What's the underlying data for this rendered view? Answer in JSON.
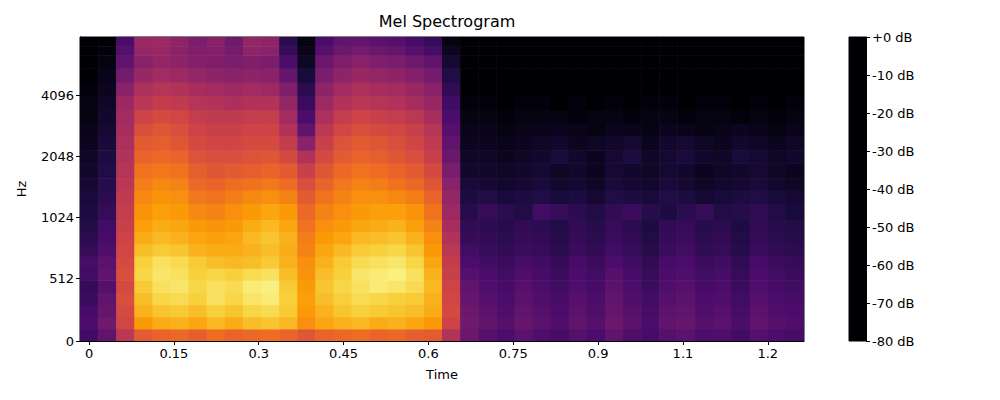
{
  "chart_data": {
    "type": "mel_spectrogram",
    "title": "Mel Spectrogram",
    "x_label": "Time",
    "y_label": "Hz",
    "x": [
      0,
      0.032,
      0.064,
      0.096,
      0.128,
      0.16,
      0.192,
      0.224,
      0.256,
      0.288,
      0.32,
      0.352,
      0.384,
      0.416,
      0.448,
      0.48,
      0.512,
      0.544,
      0.576,
      0.608,
      0.64,
      0.672,
      0.704,
      0.736,
      0.768,
      0.8,
      0.832,
      0.864,
      0.896,
      0.928,
      0.96,
      0.992,
      1.024,
      1.056,
      1.088,
      1.12,
      1.152,
      1.184,
      1.216,
      1.248
    ],
    "y_edges": [
      0,
      100,
      200,
      300,
      400,
      500,
      600,
      700,
      800,
      900,
      1000,
      1200,
      1400,
      1600,
      1900,
      2200,
      2600,
      3000,
      3500,
      4100,
      4800,
      5600,
      6500,
      7200,
      8000
    ],
    "cells": [
      [
        -64,
        -58,
        -40,
        -30,
        -28,
        -27,
        -29,
        -26,
        -28,
        -27,
        -26,
        -28,
        -31,
        -28,
        -27,
        -26,
        -28,
        -27,
        -29,
        -30,
        -42,
        -56,
        -60,
        -62,
        -59,
        -61,
        -63,
        -60,
        -62,
        -58,
        -61,
        -63,
        -60,
        -59,
        -62,
        -61,
        -64,
        -60,
        -62,
        -63
      ],
      [
        -62,
        -55,
        -35,
        -18,
        -15,
        -14,
        -16,
        -13,
        -15,
        -12,
        -11,
        -13,
        -20,
        -16,
        -14,
        -13,
        -15,
        -14,
        -16,
        -18,
        -36,
        -55,
        -58,
        -60,
        -57,
        -59,
        -61,
        -58,
        -60,
        -56,
        -59,
        -62,
        -58,
        -57,
        -60,
        -59,
        -62,
        -58,
        -60,
        -61
      ],
      [
        -63,
        -57,
        -34,
        -14,
        -11,
        -10,
        -12,
        -9,
        -11,
        -8,
        -7,
        -10,
        -18,
        -14,
        -11,
        -9,
        -10,
        -11,
        -12,
        -15,
        -34,
        -56,
        -59,
        -61,
        -58,
        -60,
        -62,
        -59,
        -61,
        -57,
        -60,
        -63,
        -59,
        -58,
        -61,
        -60,
        -63,
        -59,
        -61,
        -62
      ],
      [
        -65,
        -58,
        -33,
        -12,
        -8,
        -7,
        -9,
        -6,
        -8,
        -5,
        -4,
        -9,
        -17,
        -12,
        -9,
        -7,
        -8,
        -9,
        -10,
        -14,
        -35,
        -57,
        -60,
        -62,
        -59,
        -61,
        -63,
        -60,
        -62,
        -58,
        -61,
        -64,
        -60,
        -59,
        -62,
        -61,
        -64,
        -60,
        -62,
        -63
      ],
      [
        -66,
        -60,
        -34,
        -10,
        -6,
        -5,
        -8,
        -6,
        -7,
        -4,
        -3,
        -10,
        -18,
        -11,
        -8,
        -6,
        -4,
        -5,
        -7,
        -13,
        -36,
        -58,
        -61,
        -63,
        -60,
        -62,
        -64,
        -61,
        -63,
        -59,
        -62,
        -65,
        -61,
        -60,
        -63,
        -62,
        -65,
        -61,
        -63,
        -64
      ],
      [
        -64,
        -58,
        -33,
        -8,
        -5,
        -6,
        -9,
        -8,
        -9,
        -7,
        -6,
        -12,
        -19,
        -12,
        -9,
        -5,
        -4,
        -3,
        -6,
        -14,
        -37,
        -60,
        -62,
        -64,
        -61,
        -63,
        -65,
        -62,
        -64,
        -60,
        -63,
        -66,
        -62,
        -61,
        -64,
        -63,
        -66,
        -62,
        -64,
        -65
      ],
      [
        -63,
        -59,
        -34,
        -9,
        -6,
        -7,
        -10,
        -12,
        -13,
        -12,
        -10,
        -14,
        -20,
        -14,
        -10,
        -7,
        -6,
        -5,
        -8,
        -16,
        -38,
        -62,
        -64,
        -65,
        -63,
        -64,
        -66,
        -63,
        -65,
        -62,
        -64,
        -67,
        -63,
        -62,
        -65,
        -64,
        -67,
        -63,
        -65,
        -66
      ],
      [
        -66,
        -61,
        -35,
        -12,
        -10,
        -11,
        -14,
        -15,
        -15,
        -14,
        -12,
        -15,
        -22,
        -16,
        -13,
        -10,
        -9,
        -8,
        -11,
        -18,
        -40,
        -64,
        -66,
        -67,
        -65,
        -66,
        -68,
        -65,
        -67,
        -64,
        -66,
        -69,
        -65,
        -64,
        -67,
        -66,
        -69,
        -65,
        -67,
        -68
      ],
      [
        -68,
        -63,
        -36,
        -15,
        -13,
        -14,
        -16,
        -17,
        -16,
        -13,
        -11,
        -14,
        -23,
        -18,
        -16,
        -13,
        -12,
        -11,
        -14,
        -20,
        -42,
        -66,
        -67,
        -68,
        -66,
        -67,
        -69,
        -66,
        -68,
        -65,
        -67,
        -70,
        -66,
        -65,
        -68,
        -67,
        -70,
        -66,
        -68,
        -69
      ],
      [
        -70,
        -64,
        -37,
        -17,
        -15,
        -16,
        -18,
        -19,
        -18,
        -15,
        -13,
        -16,
        -25,
        -20,
        -18,
        -16,
        -15,
        -14,
        -17,
        -22,
        -44,
        -67,
        -68,
        -69,
        -67,
        -68,
        -70,
        -67,
        -69,
        -66,
        -68,
        -71,
        -67,
        -66,
        -69,
        -68,
        -71,
        -67,
        -69,
        -70
      ],
      [
        -71,
        -66,
        -38,
        -19,
        -17,
        -18,
        -21,
        -22,
        -20,
        -18,
        -16,
        -18,
        -27,
        -22,
        -20,
        -18,
        -17,
        -17,
        -19,
        -25,
        -46,
        -69,
        -66,
        -68,
        -70,
        -64,
        -66,
        -68,
        -70,
        -67,
        -65,
        -69,
        -71,
        -68,
        -66,
        -70,
        -69,
        -67,
        -70,
        -72
      ],
      [
        -72,
        -68,
        -39,
        -21,
        -19,
        -20,
        -24,
        -25,
        -23,
        -21,
        -20,
        -22,
        -30,
        -25,
        -22,
        -20,
        -20,
        -21,
        -23,
        -28,
        -48,
        -71,
        -70,
        -72,
        -71,
        -70,
        -72,
        -71,
        -73,
        -70,
        -71,
        -72,
        -70,
        -71,
        -73,
        -72,
        -71,
        -70,
        -72,
        -73
      ],
      [
        -73,
        -69,
        -40,
        -23,
        -21,
        -22,
        -27,
        -28,
        -26,
        -25,
        -24,
        -26,
        -33,
        -28,
        -24,
        -22,
        -23,
        -25,
        -27,
        -31,
        -50,
        -72,
        -73,
        -74,
        -73,
        -72,
        -74,
        -73,
        -75,
        -72,
        -73,
        -74,
        -72,
        -73,
        -75,
        -74,
        -73,
        -72,
        -74,
        -75
      ],
      [
        -74,
        -70,
        -41,
        -25,
        -24,
        -25,
        -29,
        -31,
        -30,
        -29,
        -28,
        -30,
        -37,
        -31,
        -27,
        -25,
        -26,
        -28,
        -30,
        -34,
        -53,
        -74,
        -74,
        -75,
        -74,
        -73,
        -75,
        -74,
        -76,
        -73,
        -74,
        -75,
        -73,
        -74,
        -76,
        -75,
        -74,
        -73,
        -75,
        -76
      ],
      [
        -75,
        -71,
        -42,
        -28,
        -27,
        -28,
        -32,
        -33,
        -33,
        -32,
        -31,
        -34,
        -42,
        -34,
        -30,
        -28,
        -29,
        -31,
        -33,
        -37,
        -56,
        -75,
        -75,
        -76,
        -75,
        -74,
        -72,
        -74,
        -76,
        -73,
        -71,
        -75,
        -73,
        -72,
        -74,
        -75,
        -72,
        -73,
        -75,
        -74
      ],
      [
        -76,
        -72,
        -43,
        -30,
        -29,
        -31,
        -34,
        -35,
        -35,
        -34,
        -34,
        -38,
        -50,
        -37,
        -32,
        -30,
        -31,
        -33,
        -35,
        -39,
        -58,
        -76,
        -76,
        -77,
        -76,
        -75,
        -74,
        -76,
        -75,
        -74,
        -73,
        -76,
        -74,
        -73,
        -75,
        -76,
        -74,
        -75,
        -76,
        -75
      ],
      [
        -77,
        -73,
        -44,
        -33,
        -31,
        -33,
        -36,
        -37,
        -37,
        -36,
        -36,
        -42,
        -58,
        -40,
        -35,
        -33,
        -34,
        -35,
        -37,
        -41,
        -60,
        -77,
        -77,
        -78,
        -77,
        -77,
        -76,
        -77,
        -78,
        -76,
        -77,
        -78,
        -76,
        -77,
        -78,
        -77,
        -76,
        -77,
        -78,
        -77
      ],
      [
        -78,
        -74,
        -45,
        -36,
        -34,
        -35,
        -38,
        -39,
        -39,
        -38,
        -38,
        -45,
        -62,
        -43,
        -38,
        -36,
        -37,
        -38,
        -40,
        -44,
        -62,
        -78,
        -78,
        -79,
        -78,
        -78,
        -78,
        -79,
        -78,
        -78,
        -79,
        -78,
        -78,
        -79,
        -78,
        -78,
        -79,
        -78,
        -79,
        -78
      ],
      [
        -78,
        -75,
        -46,
        -40,
        -38,
        -39,
        -41,
        -42,
        -43,
        -42,
        -42,
        -48,
        -65,
        -46,
        -42,
        -40,
        -41,
        -42,
        -44,
        -47,
        -64,
        -79,
        -79,
        -80,
        -79,
        -79,
        -80,
        -79,
        -80,
        -79,
        -80,
        -79,
        -79,
        -80,
        -79,
        -79,
        -80,
        -79,
        -80,
        -79
      ],
      [
        -79,
        -76,
        -50,
        -43,
        -41,
        -42,
        -44,
        -45,
        -46,
        -45,
        -46,
        -52,
        -68,
        -49,
        -45,
        -43,
        -44,
        -45,
        -47,
        -50,
        -67,
        -80,
        -80,
        -80,
        -80,
        -80,
        -80,
        -80,
        -80,
        -80,
        -80,
        -80,
        -80,
        -80,
        -80,
        -80,
        -80,
        -80,
        -80,
        -80
      ],
      [
        -80,
        -77,
        -54,
        -47,
        -45,
        -46,
        -48,
        -49,
        -50,
        -49,
        -50,
        -57,
        -72,
        -53,
        -49,
        -47,
        -48,
        -49,
        -51,
        -54,
        -70,
        -80,
        -80,
        -80,
        -80,
        -80,
        -80,
        -80,
        -80,
        -80,
        -80,
        -80,
        -80,
        -80,
        -80,
        -80,
        -80,
        -80,
        -80,
        -80
      ],
      [
        -80,
        -78,
        -58,
        -50,
        -48,
        -49,
        -51,
        -52,
        -53,
        -52,
        -53,
        -62,
        -75,
        -56,
        -52,
        -50,
        -52,
        -53,
        -55,
        -58,
        -73,
        -80,
        -80,
        -80,
        -80,
        -80,
        -80,
        -80,
        -80,
        -80,
        -80,
        -80,
        -80,
        -80,
        -80,
        -80,
        -80,
        -80,
        -80,
        -80
      ],
      [
        -80,
        -79,
        -60,
        -48,
        -47,
        -50,
        -52,
        -51,
        -54,
        -49,
        -50,
        -66,
        -77,
        -60,
        -56,
        -54,
        -56,
        -57,
        -60,
        -63,
        -76,
        -80,
        -80,
        -80,
        -80,
        -80,
        -80,
        -80,
        -80,
        -80,
        -80,
        -80,
        -80,
        -80,
        -80,
        -80,
        -80,
        -80,
        -80,
        -80
      ],
      [
        -80,
        -80,
        -62,
        -47,
        -46,
        -49,
        -53,
        -50,
        -55,
        -48,
        -49,
        -68,
        -78,
        -62,
        -58,
        -57,
        -59,
        -60,
        -63,
        -66,
        -78,
        -80,
        -80,
        -80,
        -80,
        -80,
        -80,
        -80,
        -80,
        -80,
        -80,
        -80,
        -80,
        -80,
        -80,
        -80,
        -80,
        -80,
        -80,
        -80
      ]
    ],
    "xlim": [
      -0.016,
      1.264
    ],
    "ylim": [
      0,
      8000
    ],
    "xticks": [
      0,
      0.15,
      0.3,
      0.45,
      0.6,
      0.75,
      0.9,
      {
        "value": 1.05,
        "label": "1.1"
      },
      1.2
    ],
    "yticks": [
      0,
      512,
      1024,
      2048,
      4096
    ],
    "colorbar_range": [
      -80,
      0
    ],
    "colorbar_ticks": [
      {
        "value": 0,
        "label": "+0 dB"
      },
      {
        "value": -10,
        "label": "-10 dB"
      },
      {
        "value": -20,
        "label": "-20 dB"
      },
      {
        "value": -30,
        "label": "-30 dB"
      },
      {
        "value": -40,
        "label": "-40 dB"
      },
      {
        "value": -50,
        "label": "-50 dB"
      },
      {
        "value": -60,
        "label": "-60 dB"
      },
      {
        "value": -70,
        "label": "-70 dB"
      },
      {
        "value": -80,
        "label": "-80 dB"
      }
    ]
  }
}
